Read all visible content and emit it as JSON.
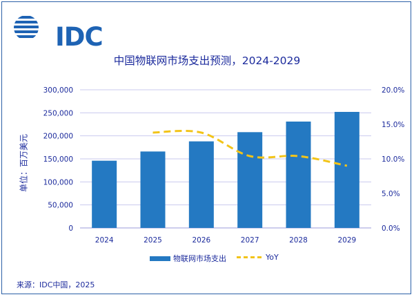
{
  "logo": {
    "text": "IDC"
  },
  "source": "来源：IDC中国，2025",
  "colors": {
    "bar": "#2479c2",
    "line": "#f2c419",
    "text": "#1b2a9c",
    "grid": "#c9c9ee"
  },
  "chart_data": {
    "type": "bar",
    "title": "中国物联网市场支出预测，2024-2029",
    "ylabel": "单位：百万美元",
    "categories": [
      "2024",
      "2025",
      "2026",
      "2027",
      "2028",
      "2029"
    ],
    "series": [
      {
        "name": "物联网市场支出",
        "type": "bar",
        "axis": "left",
        "values": [
          146000,
          166000,
          188000,
          208000,
          231000,
          252000
        ]
      },
      {
        "name": "YoY",
        "type": "line",
        "axis": "right",
        "style": "dashed",
        "smooth": true,
        "values": [
          null,
          13.8,
          13.8,
          10.4,
          10.4,
          9.0
        ]
      }
    ],
    "left_axis": {
      "ylim": [
        0,
        300000
      ],
      "ticks": [
        "0",
        "50,000",
        "100,000",
        "150,000",
        "200,000",
        "250,000",
        "300,000"
      ]
    },
    "right_axis": {
      "ylim": [
        0,
        20
      ],
      "ticks": [
        "0.0%",
        "5.0%",
        "10.0%",
        "15.0%",
        "20.0%"
      ]
    },
    "grid": true,
    "legend": "bottom"
  }
}
